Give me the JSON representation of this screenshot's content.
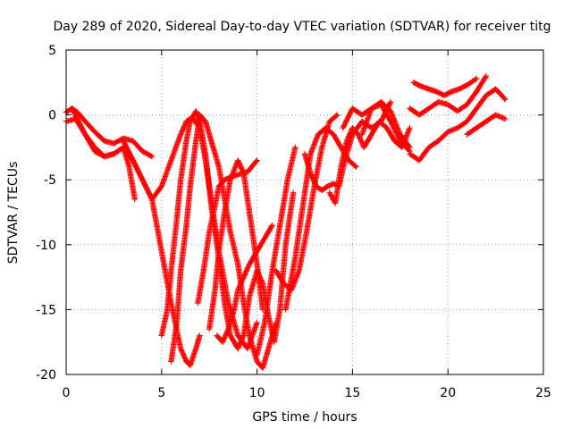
{
  "chart_data": {
    "type": "scatter",
    "title": "Day 289 of 2020, Sidereal Day-to-day VTEC variation (SDTVAR) for receiver titg",
    "xlabel": "GPS time / hours",
    "ylabel": "SDTVAR / TECUs",
    "xlim": [
      0,
      25
    ],
    "ylim": [
      -20,
      5
    ],
    "xticks": [
      "0",
      "5",
      "10",
      "15",
      "20",
      "25"
    ],
    "yticks": [
      "5",
      "0",
      "-5",
      "-10",
      "-15",
      "-20"
    ],
    "grid": true,
    "legend": "none",
    "marker": "+",
    "series_color": "#ff0000",
    "series": [
      {
        "x": [
          0.0,
          0.5,
          1.0,
          1.5,
          2.0,
          2.5,
          3.0,
          3.3,
          3.6
        ],
        "y": [
          -0.5,
          -0.3,
          -1.5,
          -2.5,
          -3.2,
          -3.0,
          -2.5,
          -4.0,
          -6.5
        ]
      },
      {
        "x": [
          0.0,
          0.3,
          0.6,
          1.0,
          1.5,
          2.0,
          2.5,
          3.0,
          3.5,
          4.0,
          4.5
        ],
        "y": [
          0.2,
          0.5,
          0.2,
          -0.5,
          -1.3,
          -2.0,
          -2.2,
          -1.8,
          -2.0,
          -2.8,
          -3.2
        ]
      },
      {
        "x": [
          0.3,
          1.0,
          1.5,
          2.0,
          2.5,
          3.0,
          3.5,
          4.0,
          4.5,
          5.0,
          5.5,
          6.0,
          6.3,
          6.6,
          7.0,
          7.3,
          7.6,
          8.0,
          8.5,
          9.0,
          9.5,
          10.0
        ],
        "y": [
          0.5,
          -1.5,
          -2.8,
          -3.2,
          -3.0,
          -2.5,
          -3.5,
          -5.0,
          -6.5,
          -5.5,
          -3.5,
          -1.5,
          -0.5,
          -0.2,
          -1.0,
          -3.5,
          -6.5,
          -10.5,
          -14.5,
          -17.0,
          -18.0,
          -16.0
        ]
      },
      {
        "x": [
          3.0,
          3.5,
          4.0,
          4.5,
          5.0,
          5.5,
          6.0,
          6.3,
          6.5,
          6.8,
          7.0
        ],
        "y": [
          -2.0,
          -3.5,
          -5.0,
          -6.5,
          -10.5,
          -14.5,
          -18.0,
          -19.0,
          -19.3,
          -18.0,
          -17.0
        ]
      },
      {
        "x": [
          5.0,
          5.3,
          5.5,
          5.8,
          6.0,
          6.3,
          6.5,
          6.8,
          7.0,
          7.3,
          7.6,
          8.0,
          8.3,
          8.6,
          9.0
        ],
        "y": [
          -17.0,
          -15.0,
          -12.0,
          -8.0,
          -5.0,
          -2.0,
          -0.5,
          0.3,
          -0.5,
          -3.0,
          -7.0,
          -11.0,
          -14.5,
          -17.0,
          -18.0
        ]
      },
      {
        "x": [
          5.5,
          5.8,
          6.0,
          6.3,
          6.5,
          6.8,
          7.0,
          7.3,
          7.6,
          8.0,
          8.3,
          8.6,
          9.0,
          9.3,
          9.6,
          10.0,
          10.3,
          10.6,
          11.0
        ],
        "y": [
          -19.0,
          -16.0,
          -12.0,
          -8.5,
          -5.5,
          -2.0,
          0.0,
          -0.5,
          -2.0,
          -4.0,
          -6.5,
          -9.0,
          -11.5,
          -14.5,
          -17.0,
          -19.0,
          -19.5,
          -18.0,
          -16.0
        ]
      },
      {
        "x": [
          6.9,
          7.2,
          7.5,
          7.8,
          8.0,
          8.3,
          8.6,
          9.0,
          9.5,
          10.0
        ],
        "y": [
          -14.5,
          -12.0,
          -9.0,
          -7.0,
          -5.5,
          -5.0,
          -4.8,
          -4.6,
          -4.4,
          -3.5
        ]
      },
      {
        "x": [
          7.5,
          7.8,
          8.0,
          8.3,
          8.6,
          9.0,
          9.3,
          9.6,
          10.0,
          10.3
        ],
        "y": [
          -16.5,
          -13.5,
          -10.5,
          -7.5,
          -5.0,
          -3.5,
          -4.5,
          -7.5,
          -11.5,
          -15.0
        ]
      },
      {
        "x": [
          7.9,
          8.2,
          8.5,
          8.8,
          9.0,
          9.3,
          9.6,
          10.0,
          10.4,
          10.8
        ],
        "y": [
          -17.0,
          -17.5,
          -16.5,
          -15.0,
          -13.5,
          -12.5,
          -11.5,
          -10.5,
          -9.5,
          -8.5
        ]
      },
      {
        "x": [
          9.0,
          9.3,
          9.6,
          10.0,
          10.3,
          10.6,
          10.9,
          11.2,
          11.5,
          11.9
        ],
        "y": [
          -18.0,
          -17.0,
          -14.0,
          -12.0,
          -13.0,
          -15.5,
          -17.5,
          -15.0,
          -10.0,
          -6.0
        ]
      },
      {
        "x": [
          10.0,
          10.4,
          10.8,
          11.2,
          11.6,
          12.0
        ],
        "y": [
          -18.5,
          -16.0,
          -12.0,
          -8.5,
          -5.0,
          -2.5
        ]
      },
      {
        "x": [
          11.0,
          11.4,
          11.8,
          12.2,
          12.6,
          13.0,
          13.4,
          13.8,
          14.2
        ],
        "y": [
          -12.0,
          -13.0,
          -13.5,
          -12.0,
          -9.0,
          -5.5,
          -2.5,
          -0.5,
          0.0
        ]
      },
      {
        "x": [
          11.5,
          12.0,
          12.4,
          12.8,
          13.2,
          13.6,
          14.0,
          14.4,
          14.8,
          15.2
        ],
        "y": [
          -15.0,
          -11.0,
          -7.0,
          -3.0,
          -1.5,
          -1.0,
          -1.5,
          -2.5,
          -3.5,
          -4.0
        ]
      },
      {
        "x": [
          12.5,
          12.8,
          13.1,
          13.4,
          13.7,
          14.0,
          14.3,
          14.6,
          15.0,
          15.5,
          16.0,
          16.5,
          17.0
        ],
        "y": [
          -3.0,
          -4.5,
          -5.5,
          -5.8,
          -5.5,
          -5.3,
          -5.5,
          -3.5,
          -1.5,
          -0.5,
          -1.0,
          -0.5,
          1.0
        ]
      },
      {
        "x": [
          13.8,
          14.1,
          14.4,
          14.7,
          15.0,
          15.3,
          15.6,
          16.0,
          16.4,
          16.8,
          17.2,
          17.6,
          18.0
        ],
        "y": [
          -6.0,
          -6.8,
          -4.0,
          -2.0,
          -1.0,
          -1.5,
          -2.5,
          -1.5,
          -0.5,
          -1.0,
          -2.0,
          -2.5,
          -1.0
        ]
      },
      {
        "x": [
          14.5,
          15.0,
          15.5,
          16.0,
          16.5,
          17.0,
          17.5,
          18.0
        ],
        "y": [
          -1.0,
          0.5,
          0.0,
          0.5,
          1.0,
          0.3,
          -1.5,
          -2.5
        ]
      },
      {
        "x": [
          15.5,
          16.0,
          16.5,
          17.0,
          17.5,
          18.0
        ],
        "y": [
          -1.5,
          0.5,
          0.8,
          -0.5,
          -2.0,
          -2.8
        ]
      },
      {
        "x": [
          18.0,
          18.5,
          19.0,
          19.5,
          20.0,
          20.5,
          21.0,
          21.5,
          22.0,
          22.5,
          23.0
        ],
        "y": [
          -3.0,
          -3.5,
          -2.5,
          -2.0,
          -1.3,
          -1.0,
          -0.5,
          0.5,
          1.5,
          2.0,
          1.2
        ]
      },
      {
        "x": [
          18.0,
          18.5,
          19.0,
          19.5,
          20.0,
          20.5,
          21.0,
          21.5,
          22.0
        ],
        "y": [
          0.5,
          0.0,
          0.5,
          1.0,
          0.8,
          0.3,
          0.8,
          1.8,
          3.0
        ]
      },
      {
        "x": [
          18.2,
          18.6,
          19.0,
          19.4,
          19.8,
          20.2,
          20.6,
          21.0,
          21.5
        ],
        "y": [
          2.5,
          2.2,
          2.0,
          1.8,
          1.5,
          1.8,
          2.0,
          2.3,
          2.8
        ]
      },
      {
        "x": [
          21.0,
          21.5,
          22.0,
          22.5,
          23.0
        ],
        "y": [
          -1.5,
          -1.0,
          -0.5,
          0.0,
          -0.3
        ]
      }
    ]
  }
}
